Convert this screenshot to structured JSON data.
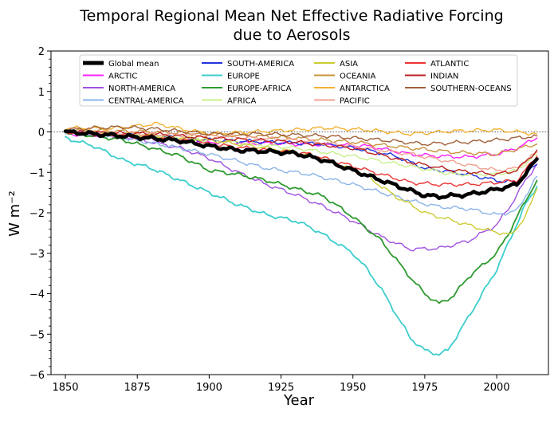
{
  "chart_data": {
    "type": "line",
    "title_line1": "Temporal Regional Mean Net Effective Radiative Forcing",
    "title_line2": "due to Aerosols",
    "xlabel": "Year",
    "ylabel": "W m⁻²",
    "xlim": [
      1845,
      2018
    ],
    "ylim": [
      -6,
      2
    ],
    "xticks": [
      1850,
      1875,
      1900,
      1925,
      1950,
      1975,
      2000
    ],
    "yticks": [
      -6,
      -5,
      -4,
      -3,
      -2,
      -1,
      0,
      1,
      2
    ],
    "ytick_labels": [
      "−6",
      "−5",
      "−4",
      "−3",
      "−2",
      "−1",
      "0",
      "1",
      "2"
    ],
    "zero_reference_line": true,
    "grid": false,
    "legend_position": "top",
    "legend_columns": 4,
    "series": [
      {
        "name": "Global mean",
        "color": "#000000",
        "width": 4.5,
        "points": [
          [
            1850,
            0
          ],
          [
            1870,
            -0.1
          ],
          [
            1890,
            -0.22
          ],
          [
            1900,
            -0.35
          ],
          [
            1910,
            -0.45
          ],
          [
            1920,
            -0.48
          ],
          [
            1930,
            -0.53
          ],
          [
            1940,
            -0.7
          ],
          [
            1950,
            -0.95
          ],
          [
            1960,
            -1.2
          ],
          [
            1970,
            -1.45
          ],
          [
            1975,
            -1.57
          ],
          [
            1980,
            -1.6
          ],
          [
            1990,
            -1.55
          ],
          [
            2000,
            -1.42
          ],
          [
            2007,
            -1.3
          ],
          [
            2014,
            -0.67
          ]
        ]
      },
      {
        "name": "ARCTIC",
        "color": "#ff22ff",
        "width": 1.4,
        "points": [
          [
            1850,
            -0.05
          ],
          [
            1880,
            -0.15
          ],
          [
            1900,
            -0.25
          ],
          [
            1930,
            -0.3
          ],
          [
            1955,
            -0.35
          ],
          [
            1970,
            -0.55
          ],
          [
            1980,
            -0.6
          ],
          [
            1990,
            -0.62
          ],
          [
            2000,
            -0.55
          ],
          [
            2007,
            -0.4
          ],
          [
            2014,
            -0.15
          ]
        ]
      },
      {
        "name": "NORTH-AMERICA",
        "color": "#a050e0",
        "width": 1.4,
        "points": [
          [
            1850,
            0
          ],
          [
            1870,
            -0.1
          ],
          [
            1890,
            -0.4
          ],
          [
            1900,
            -0.65
          ],
          [
            1910,
            -1.0
          ],
          [
            1920,
            -1.3
          ],
          [
            1930,
            -1.55
          ],
          [
            1940,
            -1.85
          ],
          [
            1950,
            -2.2
          ],
          [
            1960,
            -2.6
          ],
          [
            1970,
            -2.9
          ],
          [
            1980,
            -2.88
          ],
          [
            1990,
            -2.7
          ],
          [
            2000,
            -2.3
          ],
          [
            2005,
            -1.8
          ],
          [
            2010,
            -1.2
          ],
          [
            2014,
            -0.8
          ]
        ]
      },
      {
        "name": "CENTRAL-AMERICA",
        "color": "#8ab4e8",
        "width": 1.4,
        "points": [
          [
            1850,
            0
          ],
          [
            1870,
            -0.15
          ],
          [
            1890,
            -0.4
          ],
          [
            1900,
            -0.55
          ],
          [
            1920,
            -0.9
          ],
          [
            1935,
            -1.05
          ],
          [
            1950,
            -1.3
          ],
          [
            1960,
            -1.5
          ],
          [
            1970,
            -1.7
          ],
          [
            1980,
            -1.85
          ],
          [
            1990,
            -1.9
          ],
          [
            2000,
            -2.05
          ],
          [
            2007,
            -1.95
          ],
          [
            2014,
            -1.1
          ]
        ]
      },
      {
        "name": "SOUTH-AMERICA",
        "color": "#2233dd",
        "width": 1.4,
        "points": [
          [
            1850,
            0
          ],
          [
            1880,
            -0.1
          ],
          [
            1900,
            -0.2
          ],
          [
            1920,
            -0.25
          ],
          [
            1940,
            -0.3
          ],
          [
            1955,
            -0.45
          ],
          [
            1965,
            -0.6
          ],
          [
            1975,
            -0.9
          ],
          [
            1990,
            -1.05
          ],
          [
            2000,
            -1.2
          ],
          [
            2007,
            -1.25
          ],
          [
            2014,
            -0.8
          ]
        ]
      },
      {
        "name": "EUROPE",
        "color": "#3dcdcd",
        "width": 1.8,
        "points": [
          [
            1850,
            -0.15
          ],
          [
            1860,
            -0.35
          ],
          [
            1870,
            -0.7
          ],
          [
            1880,
            -0.9
          ],
          [
            1890,
            -1.2
          ],
          [
            1900,
            -1.5
          ],
          [
            1910,
            -1.8
          ],
          [
            1920,
            -2.05
          ],
          [
            1930,
            -2.2
          ],
          [
            1935,
            -2.35
          ],
          [
            1940,
            -2.55
          ],
          [
            1950,
            -3.0
          ],
          [
            1955,
            -3.4
          ],
          [
            1960,
            -3.9
          ],
          [
            1965,
            -4.5
          ],
          [
            1970,
            -5.1
          ],
          [
            1975,
            -5.4
          ],
          [
            1980,
            -5.5
          ],
          [
            1983,
            -5.4
          ],
          [
            1990,
            -4.6
          ],
          [
            2000,
            -3.4
          ],
          [
            2005,
            -2.6
          ],
          [
            2010,
            -1.8
          ],
          [
            2014,
            -1.35
          ]
        ]
      },
      {
        "name": "EUROPE-AFRICA",
        "color": "#2f9a2f",
        "width": 1.8,
        "points": [
          [
            1850,
            0
          ],
          [
            1870,
            -0.2
          ],
          [
            1890,
            -0.6
          ],
          [
            1900,
            -0.95
          ],
          [
            1910,
            -1.05
          ],
          [
            1920,
            -1.2
          ],
          [
            1930,
            -1.4
          ],
          [
            1940,
            -1.6
          ],
          [
            1950,
            -2.1
          ],
          [
            1960,
            -2.7
          ],
          [
            1970,
            -3.6
          ],
          [
            1975,
            -4.0
          ],
          [
            1980,
            -4.25
          ],
          [
            1985,
            -4.05
          ],
          [
            1990,
            -3.6
          ],
          [
            2000,
            -3.0
          ],
          [
            2005,
            -2.4
          ],
          [
            2010,
            -1.7
          ],
          [
            2014,
            -1.2
          ]
        ]
      },
      {
        "name": "AFRICA",
        "color": "#c9f08a",
        "width": 1.4,
        "points": [
          [
            1850,
            0
          ],
          [
            1880,
            -0.1
          ],
          [
            1900,
            -0.2
          ],
          [
            1930,
            -0.4
          ],
          [
            1950,
            -0.6
          ],
          [
            1970,
            -0.85
          ],
          [
            1985,
            -1.05
          ],
          [
            2000,
            -1.05
          ],
          [
            2007,
            -0.95
          ],
          [
            2014,
            -0.55
          ]
        ]
      },
      {
        "name": "ASIA",
        "color": "#cccc33",
        "width": 1.4,
        "points": [
          [
            1850,
            0
          ],
          [
            1880,
            -0.1
          ],
          [
            1900,
            -0.2
          ],
          [
            1930,
            -0.5
          ],
          [
            1945,
            -0.8
          ],
          [
            1955,
            -1.1
          ],
          [
            1965,
            -1.6
          ],
          [
            1975,
            -2.0
          ],
          [
            1985,
            -2.2
          ],
          [
            1995,
            -2.4
          ],
          [
            2005,
            -2.55
          ],
          [
            2010,
            -2.1
          ],
          [
            2014,
            -1.4
          ]
        ]
      },
      {
        "name": "OCEANIA",
        "color": "#c9923c",
        "width": 1.4,
        "points": [
          [
            1850,
            0.05
          ],
          [
            1880,
            0
          ],
          [
            1900,
            -0.05
          ],
          [
            1930,
            -0.15
          ],
          [
            1950,
            -0.25
          ],
          [
            1970,
            -0.4
          ],
          [
            1985,
            -0.5
          ],
          [
            2000,
            -0.55
          ],
          [
            2014,
            -0.3
          ]
        ]
      },
      {
        "name": "ANTARCTICA",
        "color": "#f2b233",
        "width": 1.4,
        "points": [
          [
            1850,
            0.1
          ],
          [
            1865,
            0.08
          ],
          [
            1875,
            0.15
          ],
          [
            1882,
            0.2
          ],
          [
            1890,
            0.08
          ],
          [
            1900,
            -0.05
          ],
          [
            1915,
            0
          ],
          [
            1930,
            0.05
          ],
          [
            1940,
            0.1
          ],
          [
            1955,
            0.05
          ],
          [
            1970,
            -0.05
          ],
          [
            1985,
            0.02
          ],
          [
            2000,
            0.05
          ],
          [
            2014,
            -0.05
          ]
        ]
      },
      {
        "name": "PACIFIC",
        "color": "#f0a090",
        "width": 1.4,
        "points": [
          [
            1850,
            0
          ],
          [
            1880,
            -0.05
          ],
          [
            1900,
            -0.1
          ],
          [
            1930,
            -0.2
          ],
          [
            1950,
            -0.35
          ],
          [
            1970,
            -0.55
          ],
          [
            1985,
            -0.75
          ],
          [
            2000,
            -0.95
          ],
          [
            2007,
            -0.9
          ],
          [
            2014,
            -0.5
          ]
        ]
      },
      {
        "name": "ATLANTIC",
        "color": "#ee3333",
        "width": 1.4,
        "points": [
          [
            1850,
            0
          ],
          [
            1870,
            -0.1
          ],
          [
            1890,
            -0.2
          ],
          [
            1900,
            -0.3
          ],
          [
            1920,
            -0.45
          ],
          [
            1935,
            -0.55
          ],
          [
            1950,
            -0.85
          ],
          [
            1960,
            -1.05
          ],
          [
            1970,
            -1.25
          ],
          [
            1980,
            -1.3
          ],
          [
            1990,
            -1.3
          ],
          [
            2000,
            -1.25
          ],
          [
            2007,
            -1.2
          ],
          [
            2014,
            -0.6
          ]
        ]
      },
      {
        "name": "INDIAN",
        "color": "#bb2222",
        "width": 1.4,
        "points": [
          [
            1850,
            0
          ],
          [
            1880,
            -0.05
          ],
          [
            1900,
            -0.15
          ],
          [
            1930,
            -0.25
          ],
          [
            1950,
            -0.4
          ],
          [
            1970,
            -0.75
          ],
          [
            1985,
            -0.95
          ],
          [
            2000,
            -1.05
          ],
          [
            2007,
            -0.95
          ],
          [
            2014,
            -0.45
          ]
        ]
      },
      {
        "name": "SOUTHERN-OCEANS",
        "color": "#a0603a",
        "width": 1.4,
        "points": [
          [
            1850,
            0.05
          ],
          [
            1860,
            0.1
          ],
          [
            1870,
            0.12
          ],
          [
            1880,
            0.08
          ],
          [
            1890,
            0.02
          ],
          [
            1900,
            -0.05
          ],
          [
            1920,
            -0.05
          ],
          [
            1940,
            -0.1
          ],
          [
            1960,
            -0.2
          ],
          [
            1975,
            -0.3
          ],
          [
            1990,
            -0.25
          ],
          [
            2000,
            -0.2
          ],
          [
            2014,
            -0.1
          ]
        ]
      }
    ]
  }
}
